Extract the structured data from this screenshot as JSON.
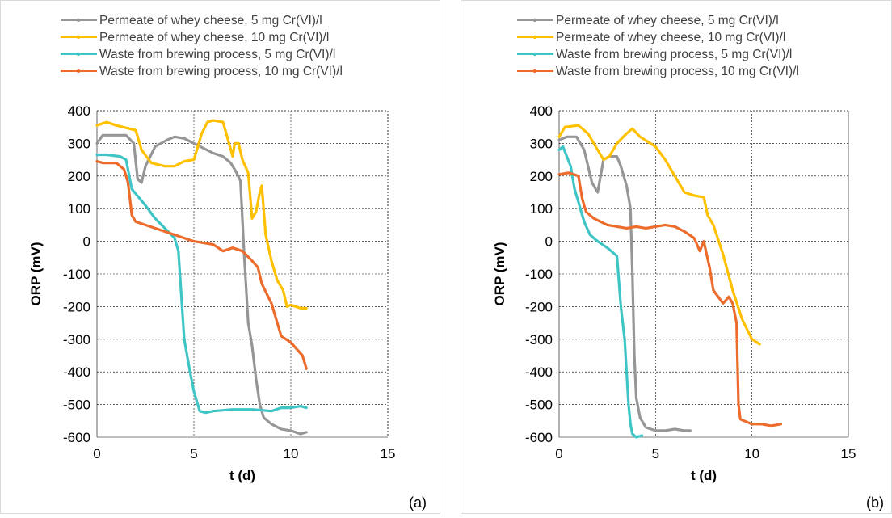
{
  "panels_label_a": "(a)",
  "panels_label_b": "(b)",
  "chart_data": [
    {
      "type": "line",
      "panel_label": "(a)",
      "xlabel": "t (d)",
      "ylabel": "ORP (mV)",
      "xlim": [
        0,
        15
      ],
      "ylim": [
        -600,
        400
      ],
      "xticks": [
        0,
        5,
        10,
        15
      ],
      "yticks": [
        400,
        300,
        200,
        100,
        0,
        -100,
        -200,
        -300,
        -400,
        -500,
        -600
      ],
      "grid": true,
      "legend_position": "top",
      "series": [
        {
          "name": "Permeate of whey cheese, 5 mg Cr(VI)/l",
          "color": "#969696",
          "x": [
            0,
            0.3,
            1.5,
            1.9,
            2.1,
            2.3,
            2.5,
            3.0,
            3.6,
            4.0,
            4.5,
            5.0,
            5.5,
            6.0,
            6.5,
            6.9,
            7.2,
            7.4,
            7.6,
            7.8,
            8.0,
            8.2,
            8.4,
            8.6,
            9.0,
            9.5,
            10.0,
            10.5,
            10.8
          ],
          "y": [
            300,
            325,
            325,
            300,
            190,
            180,
            230,
            290,
            310,
            320,
            315,
            300,
            285,
            270,
            260,
            240,
            210,
            185,
            -50,
            -250,
            -320,
            -420,
            -500,
            -540,
            -560,
            -575,
            -580,
            -590,
            -585
          ]
        },
        {
          "name": "Permeate of whey cheese, 10 mg Cr(VI)/l",
          "color": "#ffc000",
          "x": [
            0,
            0.5,
            1.0,
            2.0,
            2.3,
            2.8,
            3.5,
            4.0,
            4.5,
            5.0,
            5.4,
            5.7,
            6.0,
            6.5,
            7.0,
            7.1,
            7.3,
            7.5,
            7.8,
            8.0,
            8.2,
            8.4,
            8.5,
            8.7,
            9.0,
            9.3,
            9.6,
            9.8,
            10.0,
            10.5,
            10.8
          ],
          "y": [
            355,
            365,
            355,
            340,
            280,
            240,
            230,
            230,
            245,
            250,
            330,
            365,
            370,
            365,
            260,
            300,
            300,
            250,
            210,
            70,
            90,
            150,
            170,
            20,
            -60,
            -120,
            -150,
            -200,
            -195,
            -205,
            -205
          ]
        },
        {
          "name": "Waste from brewing process, 5 mg Cr(VI)/l",
          "color": "#3fc5c5",
          "x": [
            0,
            0.5,
            1.2,
            1.5,
            1.8,
            2.5,
            3.0,
            3.5,
            4.0,
            4.2,
            4.5,
            4.8,
            5.0,
            5.3,
            5.6,
            6.0,
            7.0,
            8.0,
            9.0,
            9.5,
            10.0,
            10.5,
            10.8
          ],
          "y": [
            265,
            265,
            260,
            250,
            160,
            110,
            70,
            40,
            10,
            -30,
            -300,
            -400,
            -460,
            -520,
            -525,
            -520,
            -515,
            -515,
            -520,
            -510,
            -510,
            -505,
            -510
          ]
        },
        {
          "name": "Waste from brewing process, 10 mg Cr(VI)/l",
          "color": "#ed6b2b",
          "x": [
            0,
            0.3,
            1.0,
            1.4,
            1.6,
            1.8,
            2.0,
            2.5,
            3.0,
            3.5,
            4.0,
            4.5,
            5.0,
            5.5,
            6.0,
            6.5,
            7.0,
            7.5,
            8.0,
            8.3,
            8.5,
            9.0,
            9.5,
            10.0,
            10.3,
            10.6,
            10.8
          ],
          "y": [
            245,
            240,
            240,
            220,
            180,
            80,
            60,
            50,
            40,
            30,
            20,
            10,
            0,
            -5,
            -10,
            -30,
            -20,
            -30,
            -60,
            -80,
            -130,
            -190,
            -290,
            -310,
            -330,
            -350,
            -390
          ]
        }
      ]
    },
    {
      "type": "line",
      "panel_label": "(b)",
      "xlabel": "t (d)",
      "ylabel": "ORP (mV)",
      "xlim": [
        0,
        15
      ],
      "ylim": [
        -600,
        400
      ],
      "xticks": [
        0,
        5,
        10,
        15
      ],
      "yticks": [
        400,
        300,
        200,
        100,
        0,
        -100,
        -200,
        -300,
        -400,
        -500,
        -600
      ],
      "grid": true,
      "legend_position": "top",
      "series": [
        {
          "name": "Permeate of whey cheese, 5 mg Cr(VI)/l",
          "color": "#969696",
          "x": [
            0,
            0.4,
            0.9,
            1.3,
            1.7,
            2.0,
            2.3,
            2.6,
            3.0,
            3.2,
            3.5,
            3.7,
            3.8,
            3.9,
            4.0,
            4.2,
            4.5,
            5.0,
            5.5,
            6.0,
            6.5,
            6.8
          ],
          "y": [
            310,
            320,
            320,
            280,
            180,
            150,
            250,
            260,
            260,
            230,
            170,
            100,
            -100,
            -350,
            -480,
            -540,
            -570,
            -580,
            -580,
            -575,
            -580,
            -580
          ]
        },
        {
          "name": "Permeate of whey cheese, 10 mg Cr(VI)/l",
          "color": "#ffc000",
          "x": [
            0,
            0.3,
            1.0,
            1.5,
            2.0,
            2.3,
            2.6,
            3.0,
            3.5,
            3.8,
            4.2,
            5.0,
            5.5,
            6.0,
            6.5,
            7.0,
            7.5,
            7.7,
            8.0,
            8.5,
            9.0,
            9.5,
            10.0,
            10.4
          ],
          "y": [
            320,
            350,
            355,
            330,
            280,
            250,
            260,
            300,
            330,
            345,
            320,
            290,
            250,
            200,
            150,
            140,
            135,
            80,
            50,
            -40,
            -150,
            -240,
            -300,
            -315
          ]
        },
        {
          "name": "Waste from brewing process, 5 mg Cr(VI)/l",
          "color": "#3fc5c5",
          "x": [
            0,
            0.2,
            0.6,
            0.8,
            1.0,
            1.3,
            1.6,
            2.0,
            2.5,
            3.0,
            3.2,
            3.4,
            3.5,
            3.6,
            3.7,
            3.8,
            4.0,
            4.3
          ],
          "y": [
            280,
            290,
            230,
            160,
            120,
            60,
            20,
            0,
            -20,
            -45,
            -200,
            -300,
            -400,
            -500,
            -560,
            -590,
            -600,
            -595
          ]
        },
        {
          "name": "Waste from brewing process, 10 mg Cr(VI)/l",
          "color": "#ed6b2b",
          "x": [
            0,
            0.5,
            1.0,
            1.2,
            1.4,
            1.8,
            2.5,
            3.0,
            3.5,
            4.0,
            4.5,
            5.0,
            5.5,
            6.0,
            6.5,
            7.0,
            7.3,
            7.5,
            7.8,
            8.0,
            8.5,
            8.8,
            9.0,
            9.2,
            9.3,
            9.4,
            10.0,
            10.5,
            11.0,
            11.5
          ],
          "y": [
            205,
            210,
            200,
            130,
            90,
            70,
            50,
            45,
            40,
            45,
            40,
            45,
            50,
            45,
            30,
            10,
            -30,
            0,
            -80,
            -150,
            -190,
            -170,
            -190,
            -250,
            -500,
            -545,
            -560,
            -560,
            -565,
            -560
          ]
        }
      ]
    }
  ]
}
